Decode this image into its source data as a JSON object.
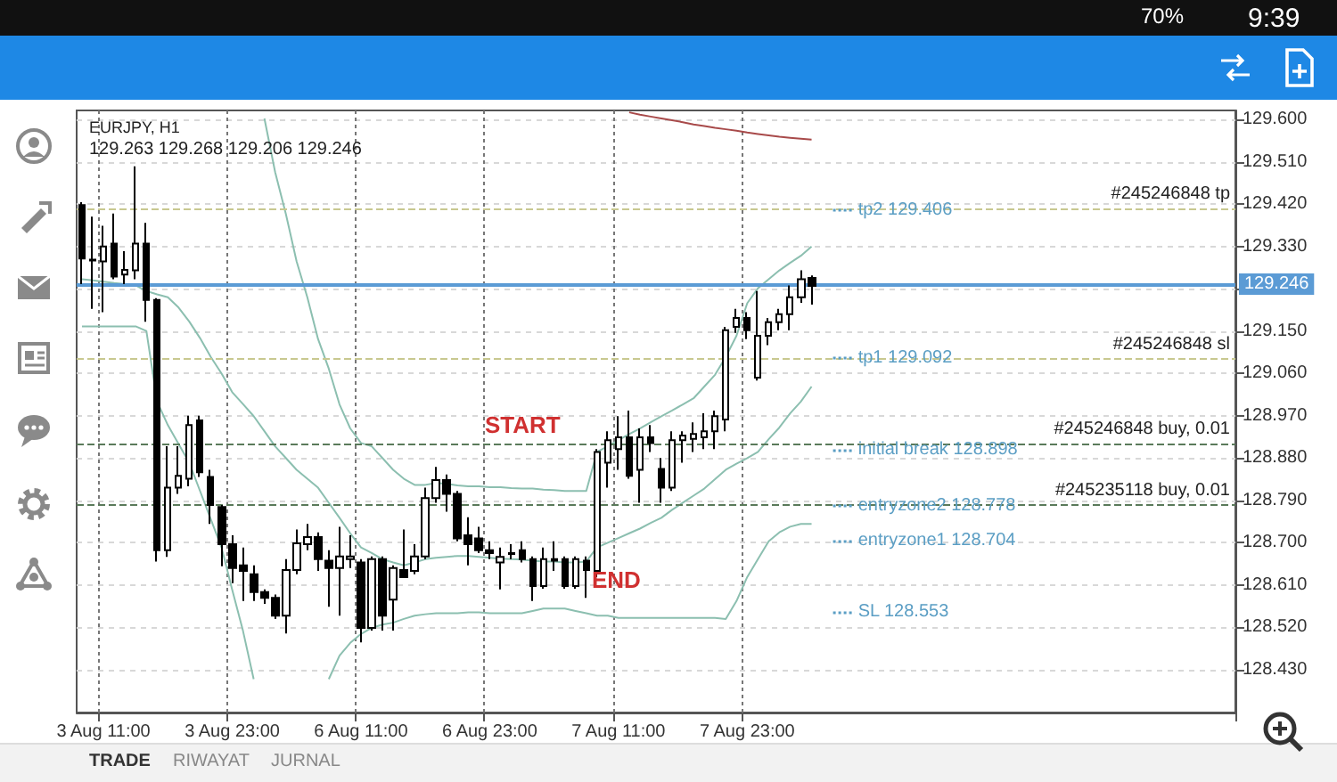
{
  "chart_data": {
    "type": "candlestick",
    "title": "EURJPY, H1",
    "subtitle": "129.263 129.268 129.206 129.246",
    "categories": [
      null,
      null,
      "3 Aug 11:00",
      null,
      null,
      null,
      null,
      null,
      null,
      null,
      null,
      null,
      null,
      null,
      "3 Aug 23:00",
      null,
      null,
      null,
      null,
      null,
      null,
      null,
      null,
      null,
      null,
      null,
      "6 Aug 11:00",
      null,
      null,
      null,
      null,
      null,
      null,
      null,
      null,
      null,
      null,
      null,
      "6 Aug 23:00",
      null,
      null,
      null,
      null,
      null,
      null,
      null,
      null,
      null,
      null,
      null,
      "7 Aug 11:00",
      null,
      null,
      null,
      null,
      null,
      null,
      null,
      null,
      null,
      null,
      null,
      "7 Aug 23:00",
      null,
      null,
      null,
      null,
      null,
      null,
      null,
      null,
      null,
      null,
      null,
      null,
      null,
      null,
      null,
      null,
      null,
      null,
      null,
      null,
      null,
      null,
      null,
      null,
      null,
      null,
      null,
      null,
      null,
      null,
      null,
      null,
      null,
      null,
      null,
      null,
      null,
      null,
      null,
      null,
      null,
      null,
      null,
      null,
      null
    ],
    "ohlc": [
      [
        129.418,
        129.424,
        129.25,
        129.304
      ],
      [
        129.3,
        129.393,
        129.197,
        129.302
      ],
      [
        129.298,
        129.374,
        129.19,
        129.33
      ],
      [
        129.336,
        129.4,
        129.26,
        129.266
      ],
      [
        129.27,
        129.32,
        129.25,
        129.28
      ],
      [
        129.279,
        129.5,
        129.26,
        129.336
      ],
      [
        129.336,
        129.38,
        129.17,
        129.216
      ],
      [
        129.216,
        129.22,
        128.66,
        128.684
      ],
      [
        128.684,
        128.905,
        128.67,
        128.817
      ],
      [
        128.817,
        128.905,
        128.804,
        128.842
      ],
      [
        128.836,
        128.97,
        128.82,
        128.95
      ],
      [
        128.96,
        128.97,
        128.84,
        128.85
      ],
      [
        128.84,
        128.855,
        128.74,
        128.78
      ],
      [
        128.776,
        128.78,
        128.65,
        128.697
      ],
      [
        128.697,
        128.716,
        128.614,
        128.646
      ],
      [
        128.652,
        128.69,
        128.576,
        128.64
      ],
      [
        128.633,
        128.652,
        128.576,
        128.595
      ],
      [
        128.595,
        128.601,
        128.57,
        128.583
      ],
      [
        128.583,
        128.59,
        128.538,
        128.545
      ],
      [
        128.545,
        128.665,
        128.507,
        128.642
      ],
      [
        128.642,
        128.728,
        128.633,
        128.699
      ],
      [
        128.697,
        128.74,
        128.684,
        128.712
      ],
      [
        128.712,
        128.722,
        128.64,
        128.665
      ],
      [
        128.662,
        128.684,
        128.564,
        128.646
      ],
      [
        128.646,
        128.734,
        128.545,
        128.671
      ],
      [
        128.665,
        128.716,
        128.646,
        128.671
      ],
      [
        128.658,
        128.665,
        128.488,
        128.519
      ],
      [
        128.519,
        128.671,
        128.513,
        128.665
      ],
      [
        128.665,
        128.671,
        128.513,
        128.545
      ],
      [
        128.579,
        128.652,
        128.513,
        128.646
      ],
      [
        128.642,
        128.728,
        128.627,
        128.627
      ],
      [
        128.64,
        128.697,
        128.633,
        128.671
      ],
      [
        128.671,
        128.817,
        128.665,
        128.795
      ],
      [
        128.795,
        128.861,
        128.785,
        128.833
      ],
      [
        128.833,
        128.845,
        128.766,
        128.804
      ],
      [
        128.804,
        128.81,
        128.703,
        128.709
      ],
      [
        128.716,
        128.754,
        128.652,
        128.697
      ],
      [
        128.709,
        128.734,
        128.678,
        128.684
      ],
      [
        128.684,
        128.703,
        128.665,
        128.678
      ],
      [
        128.658,
        128.69,
        128.601,
        128.67
      ],
      [
        128.676,
        128.697,
        128.665,
        128.678
      ],
      [
        128.684,
        128.703,
        128.658,
        128.665
      ],
      [
        128.665,
        128.671,
        128.576,
        128.608
      ],
      [
        128.608,
        128.69,
        128.602,
        128.665
      ],
      [
        128.665,
        128.703,
        128.64,
        128.662
      ],
      [
        128.665,
        128.671,
        128.602,
        128.608
      ],
      [
        128.608,
        128.671,
        128.602,
        128.665
      ],
      [
        128.662,
        128.671,
        128.583,
        128.642
      ],
      [
        128.64,
        128.899,
        128.627,
        128.893
      ],
      [
        128.87,
        128.937,
        128.817,
        128.918
      ],
      [
        128.899,
        128.969,
        128.855,
        128.924
      ],
      [
        128.924,
        128.981,
        128.836,
        128.842
      ],
      [
        128.855,
        128.943,
        128.785,
        128.924
      ],
      [
        128.924,
        128.95,
        128.893,
        128.912
      ],
      [
        128.857,
        128.88,
        128.785,
        128.817
      ],
      [
        128.817,
        128.937,
        128.81,
        128.918
      ],
      [
        128.918,
        128.937,
        128.87,
        128.928
      ],
      [
        128.921,
        128.956,
        128.893,
        128.931
      ],
      [
        128.924,
        128.975,
        128.899,
        128.937
      ],
      [
        128.937,
        128.981,
        128.899,
        128.969
      ],
      [
        128.962,
        129.159,
        128.937,
        129.152
      ],
      [
        129.159,
        129.197,
        129.146,
        129.178
      ],
      [
        129.178,
        129.19,
        129.133,
        129.152
      ],
      [
        129.051,
        129.235,
        129.045,
        129.14
      ],
      [
        129.14,
        129.178,
        129.12,
        129.169
      ],
      [
        129.169,
        129.197,
        129.152,
        129.186
      ],
      [
        129.186,
        129.247,
        129.152,
        129.222
      ],
      [
        129.222,
        129.279,
        129.21,
        129.26
      ],
      [
        129.263,
        129.268,
        129.206,
        129.246
      ],
      null,
      null,
      null,
      null,
      null,
      null,
      null,
      null,
      null,
      null,
      null,
      null,
      null,
      null,
      null,
      null,
      null,
      null,
      null,
      null,
      null,
      null,
      null,
      null,
      null,
      null,
      null,
      null,
      null,
      null,
      null,
      null,
      null,
      null,
      null,
      null,
      null,
      null,
      null
    ],
    "series": [
      {
        "type": "line",
        "color": "#8cbfb0",
        "values": [
          null,
          null,
          null,
          null,
          null,
          null,
          null,
          null,
          null,
          null,
          null,
          null,
          null,
          null,
          null,
          null,
          null,
          129.602,
          129.488,
          129.399,
          129.298,
          129.222,
          129.133,
          129.07,
          128.994,
          128.943,
          128.912,
          128.905,
          128.88,
          128.855,
          128.836,
          128.823,
          128.823,
          128.827,
          128.825,
          128.822,
          128.82,
          128.82,
          128.818,
          128.818,
          128.816,
          128.815,
          128.815,
          128.813,
          128.812,
          128.81,
          128.81,
          128.81,
          128.893,
          128.905,
          128.918,
          128.931,
          128.943,
          128.956,
          128.969,
          128.981,
          128.994,
          129.007,
          129.032,
          129.057,
          129.095,
          129.14,
          129.209,
          129.241,
          129.26,
          129.279,
          129.295,
          129.31,
          129.33,
          null,
          null,
          null,
          null,
          null,
          null,
          null,
          null,
          null,
          null,
          null,
          null,
          null,
          null,
          null,
          null,
          null,
          null,
          null,
          null,
          null,
          null,
          null,
          null,
          null,
          null,
          null,
          null,
          null,
          null,
          null,
          null,
          null,
          null,
          null,
          null,
          null,
          null,
          null
        ]
      },
      {
        "type": "line",
        "color": "#8cbfb0",
        "values": [
          129.26,
          129.258,
          129.255,
          129.252,
          129.25,
          129.247,
          129.235,
          129.228,
          129.222,
          129.2,
          129.17,
          129.135,
          129.095,
          129.06,
          129.02,
          128.995,
          128.969,
          128.937,
          128.905,
          128.88,
          128.855,
          128.836,
          128.817,
          128.785,
          128.753,
          128.72,
          128.69,
          128.678,
          128.665,
          128.658,
          128.652,
          128.658,
          128.665,
          128.668,
          128.67,
          128.672,
          128.672,
          128.67,
          128.668,
          128.666,
          128.665,
          128.664,
          128.662,
          128.66,
          128.66,
          128.658,
          128.658,
          128.66,
          128.69,
          128.7,
          128.71,
          128.72,
          128.73,
          128.742,
          128.753,
          128.77,
          128.785,
          128.8,
          128.815,
          128.835,
          128.855,
          128.868,
          128.88,
          128.893,
          128.92,
          128.945,
          128.975,
          129.0,
          129.032,
          null,
          null,
          null,
          null,
          null,
          null,
          null,
          null,
          null,
          null,
          null,
          null,
          null,
          null,
          null,
          null,
          null,
          null,
          null,
          null,
          null,
          null,
          null,
          null,
          null,
          null,
          null,
          null,
          null,
          null,
          null,
          null,
          null,
          null,
          null,
          null,
          null,
          null,
          null
        ]
      },
      {
        "type": "line",
        "color": "#8cbfb0",
        "values": [
          129.16,
          129.16,
          129.16,
          129.16,
          129.16,
          129.16,
          129.15,
          129.0,
          128.95,
          128.91,
          128.87,
          128.81,
          128.75,
          128.69,
          128.6,
          128.513,
          128.41,
          null,
          null,
          null,
          null,
          null,
          null,
          128.41,
          128.46,
          128.487,
          128.506,
          128.519,
          128.526,
          128.53,
          128.538,
          128.545,
          128.548,
          128.55,
          128.55,
          128.55,
          128.552,
          128.552,
          128.55,
          128.55,
          128.55,
          128.55,
          128.555,
          128.56,
          128.56,
          128.56,
          128.555,
          128.55,
          128.545,
          128.545,
          128.54,
          128.54,
          128.54,
          128.54,
          128.54,
          128.54,
          128.54,
          128.54,
          128.54,
          128.54,
          128.538,
          128.576,
          128.627,
          128.665,
          128.703,
          128.722,
          128.734,
          128.74,
          128.74,
          null,
          null,
          null,
          null,
          null,
          null,
          null,
          null,
          null,
          null,
          null,
          null,
          null,
          null,
          null,
          null,
          null,
          null,
          null,
          null,
          null,
          null,
          null,
          null,
          null,
          null,
          null,
          null,
          null,
          null,
          null,
          null,
          null,
          null,
          null,
          null,
          null,
          null,
          null
        ]
      },
      {
        "type": "line",
        "color": "#a84a4a",
        "values": [
          null,
          null,
          null,
          null,
          null,
          null,
          null,
          null,
          null,
          null,
          null,
          null,
          null,
          null,
          null,
          null,
          null,
          null,
          null,
          null,
          null,
          null,
          null,
          null,
          null,
          null,
          null,
          null,
          null,
          null,
          null,
          null,
          null,
          null,
          null,
          null,
          null,
          null,
          null,
          null,
          null,
          null,
          null,
          null,
          null,
          null,
          null,
          null,
          null,
          null,
          null,
          129.615,
          129.61,
          129.606,
          129.602,
          129.598,
          129.594,
          129.589,
          129.586,
          129.582,
          129.579,
          129.576,
          129.572,
          129.569,
          129.566,
          129.563,
          129.561,
          129.559,
          129.557,
          null,
          null,
          null,
          null,
          null,
          null,
          null,
          null,
          null,
          null,
          null,
          null,
          null,
          null,
          null,
          null,
          null,
          null,
          null,
          null,
          null,
          null,
          null,
          null,
          null,
          null,
          null,
          null,
          null,
          null,
          null,
          null,
          null,
          null,
          null,
          null,
          null,
          null,
          null
        ]
      }
    ],
    "ylim": [
      128.339,
      129.619
    ],
    "yticks": [
      {
        "value": 128.43,
        "label": "128.430"
      },
      {
        "value": 128.52,
        "label": "128.520"
      },
      {
        "value": 128.61,
        "label": "128.610"
      },
      {
        "value": 128.7,
        "label": "128.700"
      },
      {
        "value": 128.79,
        "label": "128.790"
      },
      {
        "value": 128.88,
        "label": "128.880"
      },
      {
        "value": 128.97,
        "label": "128.970"
      },
      {
        "value": 129.06,
        "label": "129.060"
      },
      {
        "value": 129.15,
        "label": "129.150"
      },
      {
        "value": 129.24,
        "label": null
      },
      {
        "value": 129.33,
        "label": "129.330"
      },
      {
        "value": 129.42,
        "label": "129.420"
      },
      {
        "value": 129.51,
        "label": "129.510"
      },
      {
        "value": 129.6,
        "label": "129.600"
      }
    ],
    "ref_lines": [
      {
        "axis": "y",
        "value": 129.406,
        "label": "#245246848 tp",
        "color": "#c8c890",
        "line_style": "dashed"
      },
      {
        "axis": "y",
        "value": 129.095,
        "label": "#245246848 sl",
        "color": "#c8c890",
        "line_style": "dashed"
      },
      {
        "axis": "y",
        "value": 128.91,
        "label": "#245246848 buy, 0.01",
        "color": "#5a7a5a",
        "line_style": "dashed"
      },
      {
        "axis": "y",
        "value": 128.778,
        "label": "#245235118 buy, 0.01",
        "color": "#5a7a5a",
        "line_style": "dashed"
      },
      {
        "axis": "y",
        "value": 129.246,
        "label": "129.246",
        "color": "#5b9bd5",
        "line_style": "solid"
      },
      {
        "axis": "y",
        "value": 129.406,
        "label": "tp2 129.406",
        "color": "#5b9ec4",
        "line_style": "dotted"
      },
      {
        "axis": "y",
        "value": 129.092,
        "label": "tp1 129.092",
        "color": "#5b9ec4",
        "line_style": "dotted"
      },
      {
        "axis": "y",
        "value": 128.898,
        "label": "initial break 128.898",
        "color": "#5b9ec4",
        "line_style": "dotted"
      },
      {
        "axis": "y",
        "value": 128.778,
        "label": "entryzone2 128.778",
        "color": "#5b9ec4",
        "line_style": "dotted"
      },
      {
        "axis": "y",
        "value": 128.704,
        "label": "entryzone1 128.704",
        "color": "#5b9ec4",
        "line_style": "dotted"
      },
      {
        "axis": "y",
        "value": 128.553,
        "label": "SL 128.553",
        "color": "#5b9ec4",
        "line_style": "dotted"
      }
    ],
    "annotations": [
      "70%",
      "9:39",
      "TRADE",
      "RIWAYAT",
      "JURNAL",
      "START",
      "END"
    ],
    "grid": true,
    "marker": "none",
    "line_style": "solid"
  }
}
